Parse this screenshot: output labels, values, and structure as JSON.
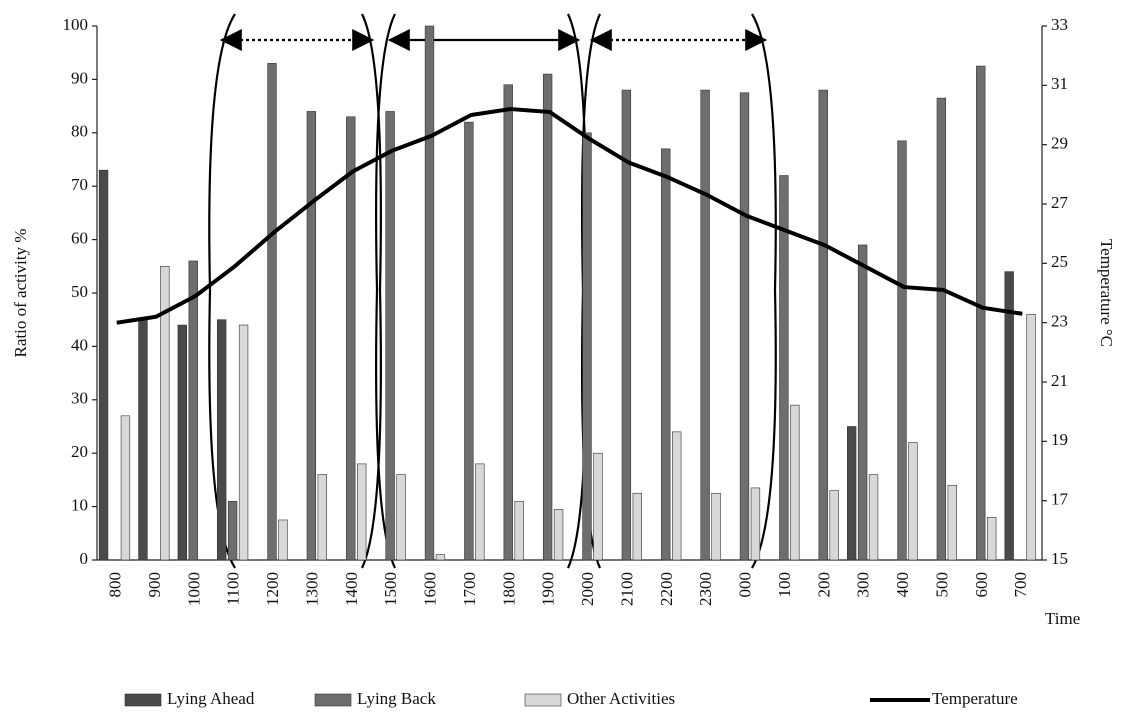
{
  "chart_data": {
    "type": "bar",
    "y_label": "Ratio of activity %",
    "y2_label": "Temperature °C",
    "x_label": "Time",
    "categories": [
      "800",
      "900",
      "1000",
      "1100",
      "1200",
      "1300",
      "1400",
      "1500",
      "1600",
      "1700",
      "1800",
      "1900",
      "2000",
      "2100",
      "2200",
      "2300",
      "000",
      "100",
      "200",
      "300",
      "400",
      "500",
      "600",
      "700"
    ],
    "series": [
      {
        "name": "Lying Ahead",
        "color": "#4a4a4a",
        "values": [
          73,
          45,
          44,
          45,
          0,
          0,
          0,
          0,
          0,
          0,
          0,
          0,
          0,
          0,
          0,
          0,
          0,
          0,
          0,
          25,
          0,
          0,
          0,
          54
        ]
      },
      {
        "name": "Lying Back",
        "color": "#6e6e6e",
        "values": [
          0,
          0,
          56,
          11,
          93,
          84,
          83,
          84,
          100,
          82,
          89,
          91,
          80,
          88,
          77,
          88,
          87.5,
          72,
          88,
          59,
          78.5,
          86.5,
          92.5,
          0
        ]
      },
      {
        "name": "Other Activities",
        "color": "#d8d8d8",
        "values": [
          27,
          55,
          0,
          44,
          7.5,
          16,
          18,
          16,
          1,
          18,
          11,
          9.5,
          20,
          12.5,
          24,
          12.5,
          13.5,
          29,
          13,
          16,
          22,
          14,
          8,
          46
        ]
      },
      {
        "name": "Temperature",
        "color": "#000000",
        "axis": "y2",
        "type": "line",
        "values": [
          23.0,
          23.2,
          23.9,
          24.9,
          26.05,
          27.1,
          28.1,
          28.8,
          29.3,
          30.0,
          30.2,
          30.1,
          29.2,
          28.4,
          27.9,
          27.3,
          26.6,
          26.1,
          25.6,
          24.9,
          24.2,
          24.1,
          23.5,
          23.3
        ]
      }
    ],
    "ylim": [
      0,
      100
    ],
    "yticks": [
      0,
      10,
      20,
      30,
      40,
      50,
      60,
      70,
      80,
      90,
      100
    ],
    "y2lim": [
      15,
      33
    ],
    "y2ticks": [
      15,
      17,
      19,
      21,
      23,
      25,
      27,
      29,
      31,
      33
    ]
  }
}
